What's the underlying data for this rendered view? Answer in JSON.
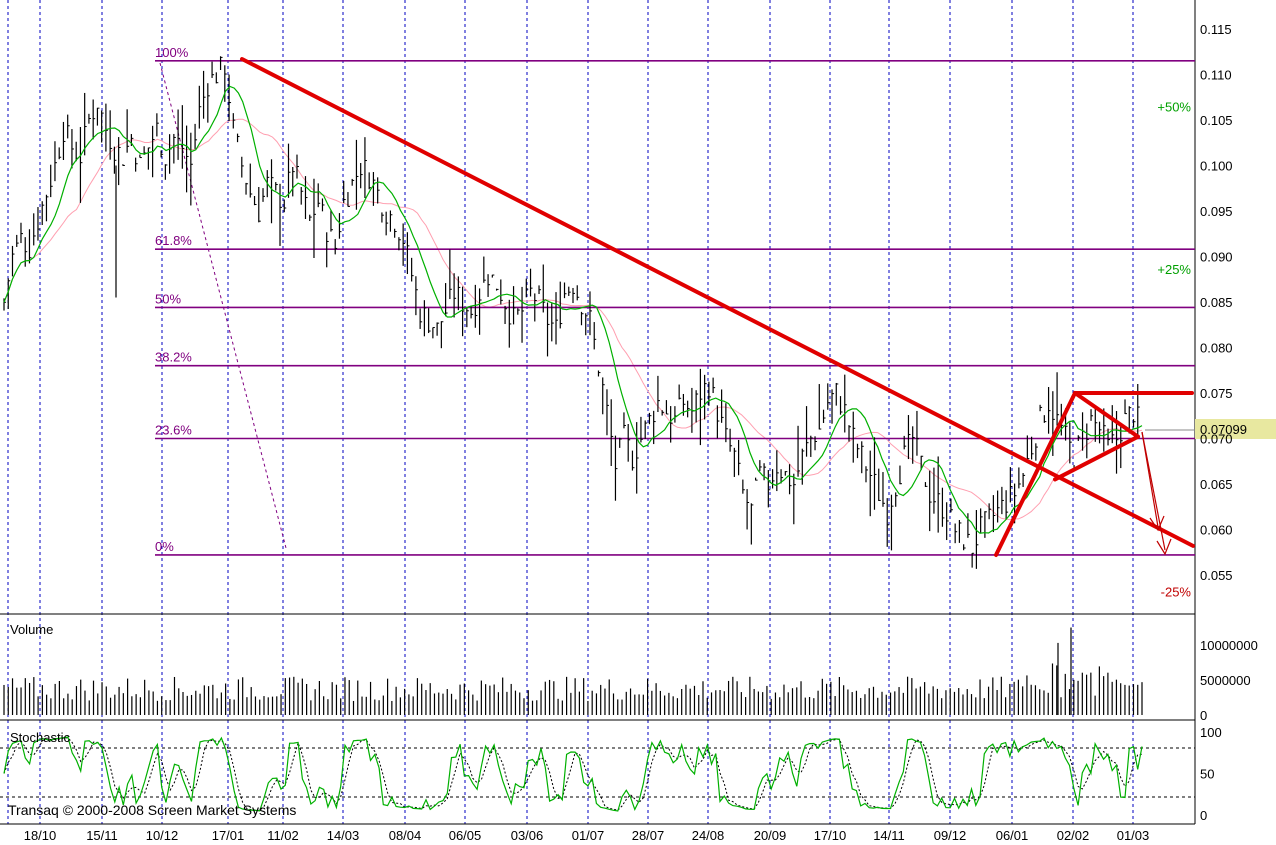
{
  "chart_data": [
    {
      "type": "ohlc",
      "panel": "price",
      "ylim": [
        0.052,
        0.117
      ],
      "y_ticks": [
        "0.115",
        "0.110",
        "0.105",
        "0.100",
        "0.095",
        "0.090",
        "0.085",
        "0.080",
        "0.075",
        "0.070",
        "0.065",
        "0.060",
        "0.055"
      ],
      "last_price_label": "0.07099",
      "last_price": 0.07099,
      "fibonacci": [
        {
          "label": "100%",
          "value": 0.1115
        },
        {
          "label": "61.8%",
          "value": 0.0908
        },
        {
          "label": "50%",
          "value": 0.0844
        },
        {
          "label": "38.2%",
          "value": 0.078
        },
        {
          "label": "23.6%",
          "value": 0.07
        },
        {
          "label": "0%",
          "value": 0.0572
        }
      ],
      "percent_labels": [
        {
          "label": "+50%",
          "value": 0.1065,
          "direction": "up"
        },
        {
          "label": "+25%",
          "value": 0.0886,
          "direction": "up"
        },
        {
          "label": "-25%",
          "value": 0.0532,
          "direction": "down"
        }
      ],
      "close_path": [
        0.085,
        0.09,
        0.092,
        0.091,
        0.094,
        0.097,
        0.1,
        0.104,
        0.102,
        0.101,
        0.105,
        0.107,
        0.104,
        0.102,
        0.101,
        0.103,
        0.1,
        0.102,
        0.104,
        0.101,
        0.103,
        0.102,
        0.1,
        0.106,
        0.109,
        0.11,
        0.111,
        0.104,
        0.1,
        0.097,
        0.095,
        0.098,
        0.097,
        0.096,
        0.1,
        0.097,
        0.094,
        0.096,
        0.093,
        0.091,
        0.096,
        0.098,
        0.1,
        0.099,
        0.097,
        0.095,
        0.094,
        0.092,
        0.088,
        0.084,
        0.083,
        0.082,
        0.084,
        0.086,
        0.085,
        0.084,
        0.086,
        0.088,
        0.087,
        0.085,
        0.083,
        0.084,
        0.086,
        0.085,
        0.083,
        0.082,
        0.086,
        0.087,
        0.085,
        0.083,
        0.078,
        0.073,
        0.067,
        0.07,
        0.068,
        0.07,
        0.072,
        0.074,
        0.073,
        0.072,
        0.074,
        0.073,
        0.075,
        0.076,
        0.073,
        0.07,
        0.068,
        0.064,
        0.062,
        0.066,
        0.065,
        0.067,
        0.066,
        0.065,
        0.068,
        0.07,
        0.071,
        0.074,
        0.075,
        0.073,
        0.07,
        0.068,
        0.066,
        0.064,
        0.062,
        0.065,
        0.068,
        0.07,
        0.067,
        0.064,
        0.063,
        0.062,
        0.06,
        0.059,
        0.058,
        0.06,
        0.061,
        0.062,
        0.063,
        0.064,
        0.066,
        0.069,
        0.072,
        0.074,
        0.072,
        0.07,
        0.068,
        0.07,
        0.072,
        0.071,
        0.069,
        0.07,
        0.072,
        0.073,
        0.071
      ],
      "trendlines": [
        {
          "from": [
            "17/01",
            0.1117
          ],
          "to": [
            "end",
            0.0582
          ],
          "color": "#e00000"
        },
        {
          "from": [
            "06/01",
            0.0572
          ],
          "to": [
            "02/02",
            0.075
          ],
          "color": "#e00000"
        },
        {
          "from": [
            "02/02",
            0.075
          ],
          "to": [
            "01/03",
            0.075
          ],
          "color": "#e00000"
        },
        {
          "from": [
            "02/02",
            0.075
          ],
          "to": [
            "01/03",
            0.0702
          ],
          "color": "#e00000"
        },
        {
          "from": [
            "01/03",
            0.0702
          ],
          "to": [
            "02/02",
            0.0655
          ],
          "color": "#e00000"
        }
      ],
      "colors": {
        "bars": "#000000",
        "fib": "#800080",
        "ma_fast": "#00b000",
        "ma_slow": "#ff9fb0",
        "trend": "#e00000",
        "target": "#c00000",
        "grid": "#0000c0",
        "price_label_bg": "#e8e8a0"
      }
    },
    {
      "type": "bar",
      "panel": "volume",
      "title": "Volume",
      "ylim": [
        0,
        14000000
      ],
      "y_ticks": [
        "10000000",
        "5000000",
        "0"
      ]
    },
    {
      "type": "line",
      "panel": "stochastic",
      "title": "Stochastic",
      "ylim": [
        0,
        100
      ],
      "y_ticks": [
        "100",
        "50",
        "0"
      ],
      "levels": [
        20,
        80
      ]
    }
  ],
  "x_ticks": [
    "18/10",
    "15/11",
    "10/12",
    "17/01",
    "11/02",
    "14/03",
    "08/04",
    "06/05",
    "03/06",
    "01/07",
    "28/07",
    "24/08",
    "20/09",
    "17/10",
    "14/11",
    "09/12",
    "06/01",
    "02/02",
    "01/03"
  ],
  "copyright": "Transaq © 2000-2008 Screen Market Systems"
}
